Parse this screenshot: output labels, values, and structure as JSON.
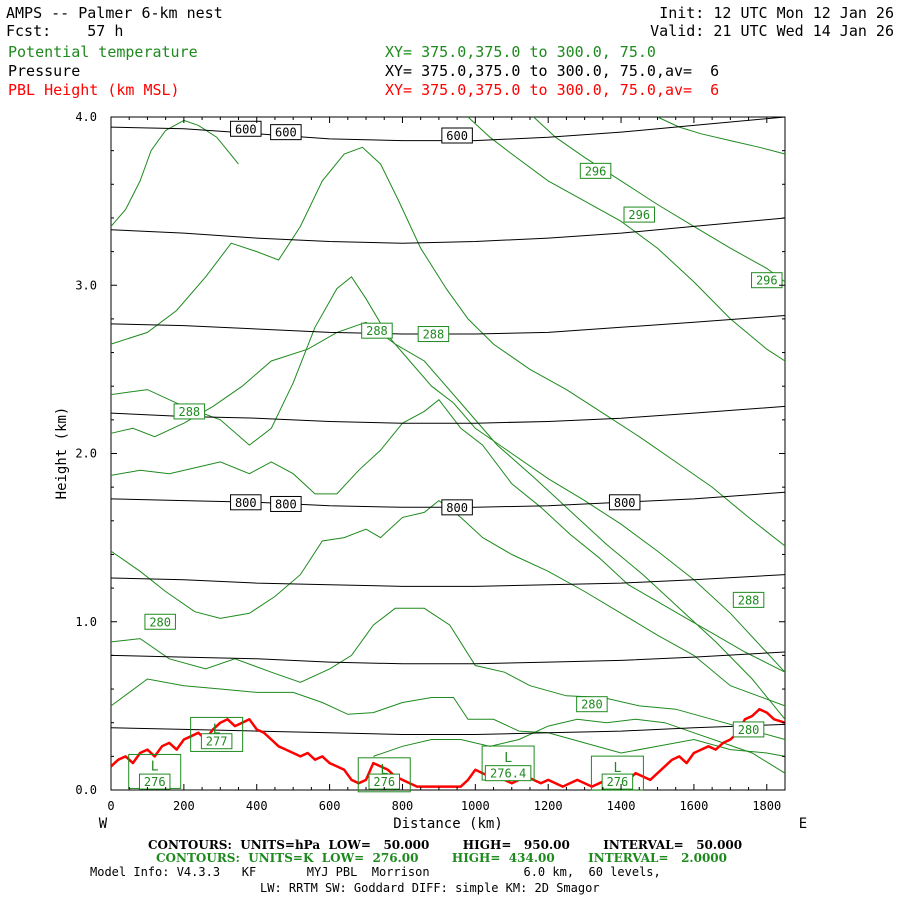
{
  "header": {
    "title": "AMPS -- Palmer 6-km nest",
    "forecast": "Fcst:    57 h",
    "init": "Init: 12 UTC Mon 12 Jan 26",
    "valid": "Valid: 21 UTC Wed 14 Jan 26",
    "fields": [
      {
        "name": "Potential temperature",
        "xy": "XY= 375.0,375.0 to 300.0, 75.0",
        "color": "#1e8a1e"
      },
      {
        "name": "Pressure",
        "xy": "XY= 375.0,375.0 to 300.0, 75.0,av=  6",
        "color": "#000000"
      },
      {
        "name": "PBL Height (km MSL)",
        "xy": "XY= 375.0,375.0 to 300.0, 75.0,av=  6",
        "color": "#ff0000"
      }
    ]
  },
  "chart_data": {
    "type": "line",
    "xlabel": "Distance (km)",
    "ylabel": "Height (km)",
    "xlim": [
      0,
      1850
    ],
    "ylim": [
      0,
      4.0
    ],
    "x_ticks": [
      "0",
      "200",
      "400",
      "600",
      "800",
      "1000",
      "1200",
      "1400",
      "1600",
      "1800"
    ],
    "y_ticks": [
      "0.0",
      "1.0",
      "2.0",
      "3.0",
      "4.0"
    ],
    "west_label": "W",
    "east_label": "E",
    "pressure_contours": {
      "color": "#000000",
      "x": [
        0,
        200,
        400,
        600,
        800,
        1000,
        1200,
        1400,
        1600,
        1850
      ],
      "lines": [
        {
          "level": "600",
          "y": [
            3.94,
            3.93,
            3.9,
            3.87,
            3.86,
            3.86,
            3.88,
            3.91,
            3.95,
            4.0
          ]
        },
        {
          "level": "",
          "y": [
            3.33,
            3.31,
            3.28,
            3.26,
            3.25,
            3.26,
            3.28,
            3.31,
            3.35,
            3.4
          ]
        },
        {
          "level": "",
          "y": [
            2.77,
            2.76,
            2.74,
            2.72,
            2.71,
            2.71,
            2.72,
            2.75,
            2.78,
            2.82
          ]
        },
        {
          "level": "",
          "y": [
            2.24,
            2.22,
            2.21,
            2.19,
            2.18,
            2.18,
            2.19,
            2.21,
            2.24,
            2.28
          ]
        },
        {
          "level": "800",
          "y": [
            1.73,
            1.72,
            1.71,
            1.69,
            1.68,
            1.68,
            1.69,
            1.71,
            1.73,
            1.77
          ]
        },
        {
          "level": "",
          "y": [
            1.26,
            1.25,
            1.23,
            1.22,
            1.21,
            1.21,
            1.22,
            1.23,
            1.25,
            1.28
          ]
        },
        {
          "level": "",
          "y": [
            0.8,
            0.79,
            0.78,
            0.76,
            0.75,
            0.75,
            0.76,
            0.77,
            0.79,
            0.82
          ]
        },
        {
          "level": "",
          "y": [
            0.37,
            0.36,
            0.35,
            0.34,
            0.33,
            0.33,
            0.34,
            0.35,
            0.37,
            0.39
          ]
        }
      ],
      "labels": [
        {
          "text": "600",
          "x": 370,
          "y": 3.93
        },
        {
          "text": "600",
          "x": 480,
          "y": 3.91
        },
        {
          "text": "600",
          "x": 950,
          "y": 3.89
        },
        {
          "text": "800",
          "x": 370,
          "y": 1.71
        },
        {
          "text": "800",
          "x": 480,
          "y": 1.7
        },
        {
          "text": "800",
          "x": 950,
          "y": 1.68
        },
        {
          "text": "800",
          "x": 1410,
          "y": 1.71
        }
      ]
    },
    "theta_contours": {
      "color": "#1e8a1e",
      "lines": [
        {
          "x": [
            0,
            80,
            150,
            230,
            300,
            380,
            450,
            520,
            580,
            640,
            700,
            740,
            800,
            860,
            900,
            960,
            1020,
            1100,
            1200,
            1300,
            1400,
            1500,
            1600,
            1700,
            1850
          ],
          "y": [
            1.42,
            1.3,
            1.18,
            1.06,
            1.02,
            1.05,
            1.15,
            1.28,
            1.48,
            1.5,
            1.55,
            1.5,
            1.62,
            1.65,
            1.72,
            1.62,
            1.5,
            1.4,
            1.3,
            1.18,
            1.05,
            0.92,
            0.8,
            0.62,
            0.5
          ]
        },
        {
          "x": [
            0,
            80,
            160,
            260,
            340,
            440,
            520,
            600,
            660,
            720,
            780,
            860,
            930,
            1000,
            1080,
            1150,
            1250,
            1350,
            1450,
            1550,
            1650,
            1750,
            1850
          ],
          "y": [
            0.88,
            0.9,
            0.78,
            0.72,
            0.78,
            0.7,
            0.64,
            0.72,
            0.8,
            0.98,
            1.08,
            1.08,
            0.98,
            0.74,
            0.7,
            0.62,
            0.56,
            0.55,
            0.5,
            0.48,
            0.42,
            0.36,
            0.3
          ]
        },
        {
          "x": [
            0,
            100,
            200,
            300,
            400,
            500,
            580,
            650,
            720,
            800,
            880,
            940,
            980,
            1050,
            1120,
            1200,
            1300,
            1400,
            1500,
            1600,
            1700,
            1800,
            1850
          ],
          "y": [
            0.5,
            0.66,
            0.62,
            0.6,
            0.58,
            0.58,
            0.52,
            0.45,
            0.46,
            0.52,
            0.55,
            0.55,
            0.42,
            0.42,
            0.35,
            0.34,
            0.28,
            0.22,
            0.26,
            0.3,
            0.24,
            0.22,
            0.2
          ]
        },
        {
          "x": [
            0,
            80,
            160,
            240,
            300,
            380,
            440,
            500,
            560,
            620,
            680,
            740,
            800,
            860,
            900,
            960,
            1020,
            1100,
            1180,
            1260,
            1340,
            1420,
            1500,
            1580,
            1660,
            1740,
            1850
          ],
          "y": [
            1.87,
            1.9,
            1.88,
            1.92,
            1.95,
            1.88,
            1.95,
            1.88,
            1.76,
            1.76,
            1.9,
            2.02,
            2.18,
            2.25,
            2.32,
            2.15,
            2.05,
            1.82,
            1.68,
            1.52,
            1.38,
            1.22,
            1.12,
            1.02,
            0.92,
            0.82,
            0.7
          ]
        },
        {
          "x": [
            0,
            100,
            200,
            300,
            380,
            440,
            500,
            560,
            620,
            660,
            700,
            760,
            820,
            880,
            940,
            1000,
            1100,
            1200,
            1300,
            1400,
            1500,
            1600,
            1700,
            1850
          ],
          "y": [
            2.35,
            2.38,
            2.28,
            2.2,
            2.05,
            2.15,
            2.42,
            2.75,
            2.98,
            3.05,
            2.92,
            2.7,
            2.55,
            2.4,
            2.3,
            2.15,
            2.0,
            1.85,
            1.72,
            1.58,
            1.42,
            1.25,
            1.05,
            0.7
          ]
        },
        {
          "x": [
            0,
            100,
            180,
            260,
            330,
            400,
            460,
            520,
            580,
            640,
            690,
            740,
            790,
            850,
            920,
            980,
            1050,
            1150,
            1250,
            1350,
            1450,
            1550,
            1650,
            1750,
            1850
          ],
          "y": [
            2.65,
            2.72,
            2.85,
            3.05,
            3.25,
            3.2,
            3.15,
            3.35,
            3.62,
            3.78,
            3.82,
            3.72,
            3.5,
            3.22,
            2.98,
            2.8,
            2.65,
            2.5,
            2.38,
            2.24,
            2.1,
            1.95,
            1.8,
            1.62,
            1.45
          ]
        },
        {
          "x": [
            0,
            40,
            80,
            110,
            150,
            200,
            240,
            290,
            320,
            350
          ],
          "y": [
            3.35,
            3.45,
            3.62,
            3.8,
            3.92,
            3.98,
            3.95,
            3.88,
            3.8,
            3.72
          ]
        },
        {
          "x": [
            980,
            1040,
            1100,
            1200,
            1300,
            1400,
            1500,
            1600,
            1700,
            1800,
            1850
          ],
          "y": [
            4.0,
            3.88,
            3.78,
            3.62,
            3.5,
            3.38,
            3.22,
            3.02,
            2.8,
            2.62,
            2.55
          ]
        },
        {
          "x": [
            1160,
            1220,
            1300,
            1400,
            1500,
            1600,
            1700,
            1800,
            1850
          ],
          "y": [
            4.0,
            3.88,
            3.76,
            3.62,
            3.48,
            3.35,
            3.22,
            3.1,
            3.02
          ]
        },
        {
          "x": [
            1500,
            1560,
            1620,
            1700,
            1780,
            1850
          ],
          "y": [
            4.0,
            3.94,
            3.9,
            3.86,
            3.82,
            3.78
          ]
        },
        {
          "x": [
            0,
            60,
            120,
            200,
            280,
            360,
            440,
            540,
            620,
            700,
            780,
            860,
            960,
            1060,
            1160,
            1260,
            1360,
            1460,
            1560,
            1660,
            1760,
            1850
          ],
          "y": [
            2.12,
            2.15,
            2.1,
            2.18,
            2.28,
            2.4,
            2.55,
            2.62,
            2.72,
            2.78,
            2.65,
            2.55,
            2.3,
            2.05,
            1.86,
            1.66,
            1.46,
            1.28,
            1.08,
            0.88,
            0.66,
            0.42
          ]
        },
        {
          "x": [
            720,
            800,
            880,
            960,
            1040,
            1120,
            1200,
            1280,
            1360,
            1440,
            1520,
            1600,
            1680,
            1760,
            1850
          ],
          "y": [
            0.2,
            0.26,
            0.3,
            0.3,
            0.26,
            0.3,
            0.38,
            0.42,
            0.4,
            0.42,
            0.4,
            0.34,
            0.28,
            0.22,
            0.1
          ]
        }
      ],
      "labels": [
        {
          "text": "296",
          "x": 1330,
          "y": 3.68
        },
        {
          "text": "296",
          "x": 1450,
          "y": 3.42
        },
        {
          "text": "296",
          "x": 1800,
          "y": 3.03
        },
        {
          "text": "288",
          "x": 730,
          "y": 2.73
        },
        {
          "text": "288",
          "x": 885,
          "y": 2.71
        },
        {
          "text": "288",
          "x": 215,
          "y": 2.25
        },
        {
          "text": "288",
          "x": 1750,
          "y": 1.13
        },
        {
          "text": "280",
          "x": 135,
          "y": 1.0
        },
        {
          "text": "280",
          "x": 1320,
          "y": 0.51
        },
        {
          "text": "280",
          "x": 1750,
          "y": 0.36
        },
        {
          "text": "277",
          "x": 290,
          "y": 0.29
        },
        {
          "text": "276",
          "x": 120,
          "y": 0.05
        },
        {
          "text": "276",
          "x": 750,
          "y": 0.05
        },
        {
          "text": "276.4",
          "x": 1090,
          "y": 0.1
        },
        {
          "text": "276",
          "x": 1390,
          "y": 0.05
        }
      ],
      "lows": [
        {
          "text": "L",
          "x": 120,
          "y": 0.14
        },
        {
          "text": "L",
          "x": 290,
          "y": 0.36
        },
        {
          "text": "L",
          "x": 750,
          "y": 0.12
        },
        {
          "text": "L",
          "x": 1090,
          "y": 0.19
        },
        {
          "text": "L",
          "x": 1390,
          "y": 0.13
        }
      ]
    },
    "series": [
      {
        "name": "PBL Height (km MSL)",
        "color": "#ff0000",
        "x": [
          0,
          20,
          40,
          60,
          80,
          100,
          120,
          140,
          160,
          180,
          200,
          220,
          240,
          260,
          280,
          300,
          320,
          340,
          360,
          380,
          400,
          420,
          440,
          460,
          480,
          500,
          520,
          540,
          560,
          580,
          600,
          620,
          640,
          660,
          680,
          700,
          720,
          740,
          760,
          780,
          800,
          820,
          840,
          860,
          880,
          900,
          920,
          940,
          960,
          980,
          1000,
          1020,
          1040,
          1060,
          1080,
          1100,
          1120,
          1140,
          1160,
          1180,
          1200,
          1220,
          1240,
          1260,
          1280,
          1300,
          1320,
          1340,
          1360,
          1380,
          1400,
          1420,
          1440,
          1460,
          1480,
          1500,
          1520,
          1540,
          1560,
          1580,
          1600,
          1620,
          1640,
          1660,
          1680,
          1700,
          1720,
          1740,
          1760,
          1780,
          1800,
          1820,
          1850
        ],
        "y": [
          0.14,
          0.18,
          0.2,
          0.16,
          0.22,
          0.24,
          0.2,
          0.26,
          0.28,
          0.24,
          0.3,
          0.32,
          0.34,
          0.3,
          0.36,
          0.4,
          0.42,
          0.38,
          0.4,
          0.42,
          0.36,
          0.34,
          0.3,
          0.26,
          0.24,
          0.22,
          0.2,
          0.22,
          0.18,
          0.2,
          0.16,
          0.14,
          0.12,
          0.06,
          0.04,
          0.06,
          0.16,
          0.14,
          0.12,
          0.08,
          0.06,
          0.04,
          0.02,
          0.02,
          0.02,
          0.02,
          0.02,
          0.02,
          0.02,
          0.06,
          0.12,
          0.1,
          0.08,
          0.1,
          0.06,
          0.04,
          0.06,
          0.08,
          0.06,
          0.04,
          0.06,
          0.04,
          0.02,
          0.04,
          0.06,
          0.04,
          0.02,
          0.04,
          0.06,
          0.04,
          0.08,
          0.06,
          0.1,
          0.08,
          0.06,
          0.1,
          0.14,
          0.18,
          0.2,
          0.16,
          0.22,
          0.24,
          0.26,
          0.24,
          0.28,
          0.3,
          0.34,
          0.42,
          0.44,
          0.48,
          0.46,
          0.42,
          0.4
        ]
      }
    ]
  },
  "footer": {
    "pressure_contours": "CONTOURS:  UNITS=hPa  LOW=   50.000        HIGH=   950.00        INTERVAL=   50.000",
    "theta_contours": "CONTOURS:  UNITS=K  LOW=  276.00        HIGH=  434.00        INTERVAL=   2.0000",
    "model_info_1": "Model Info: V4.3.3   KF       MYJ PBL  Morrison             6.0 km,  60 levels,",
    "model_info_2": "LW: RRTM SW: Goddard DIFF: simple KM: 2D Smagor"
  }
}
